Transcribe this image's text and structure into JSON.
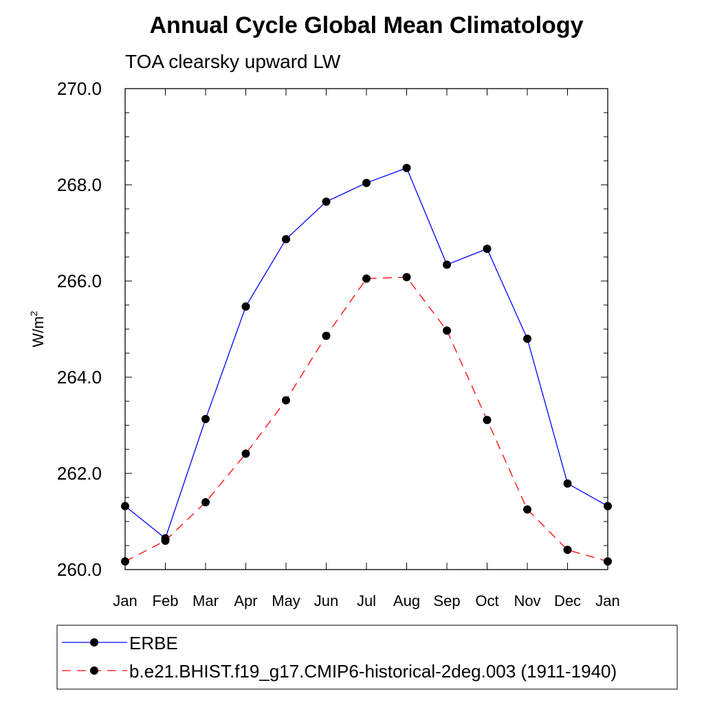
{
  "chart_data": {
    "type": "line",
    "title": "Annual Cycle Global Mean Climatology",
    "subtitle": "TOA clearsky upward LW",
    "xlabel": "",
    "ylabel": "W/m",
    "ylabel_superscript": "2",
    "categories": [
      "Jan",
      "Feb",
      "Mar",
      "Apr",
      "May",
      "Jun",
      "Jul",
      "Aug",
      "Sep",
      "Oct",
      "Nov",
      "Dec",
      "Jan"
    ],
    "ylim": [
      260.0,
      270.0
    ],
    "yticks": [
      "260.0",
      "262.0",
      "264.0",
      "266.0",
      "268.0",
      "270.0"
    ],
    "ytick_values": [
      260,
      262,
      264,
      266,
      268,
      270
    ],
    "y_minor_step": 0.5,
    "grid": false,
    "legend_position": "bottom",
    "series": [
      {
        "name": "ERBE",
        "color": "#0000ff",
        "dashed": false,
        "values": [
          261.32,
          260.65,
          263.13,
          265.47,
          266.87,
          267.65,
          268.04,
          268.35,
          266.34,
          266.67,
          264.8,
          261.79,
          261.32
        ]
      },
      {
        "name": "b.e21.BHIST.f19_g17.CMIP6-historical-2deg.003 (1911-1940)",
        "color": "#ff0000",
        "dashed": true,
        "values": [
          260.17,
          260.6,
          261.4,
          262.41,
          263.52,
          264.86,
          266.05,
          266.08,
          264.97,
          263.11,
          261.25,
          260.41,
          260.17
        ]
      }
    ]
  }
}
